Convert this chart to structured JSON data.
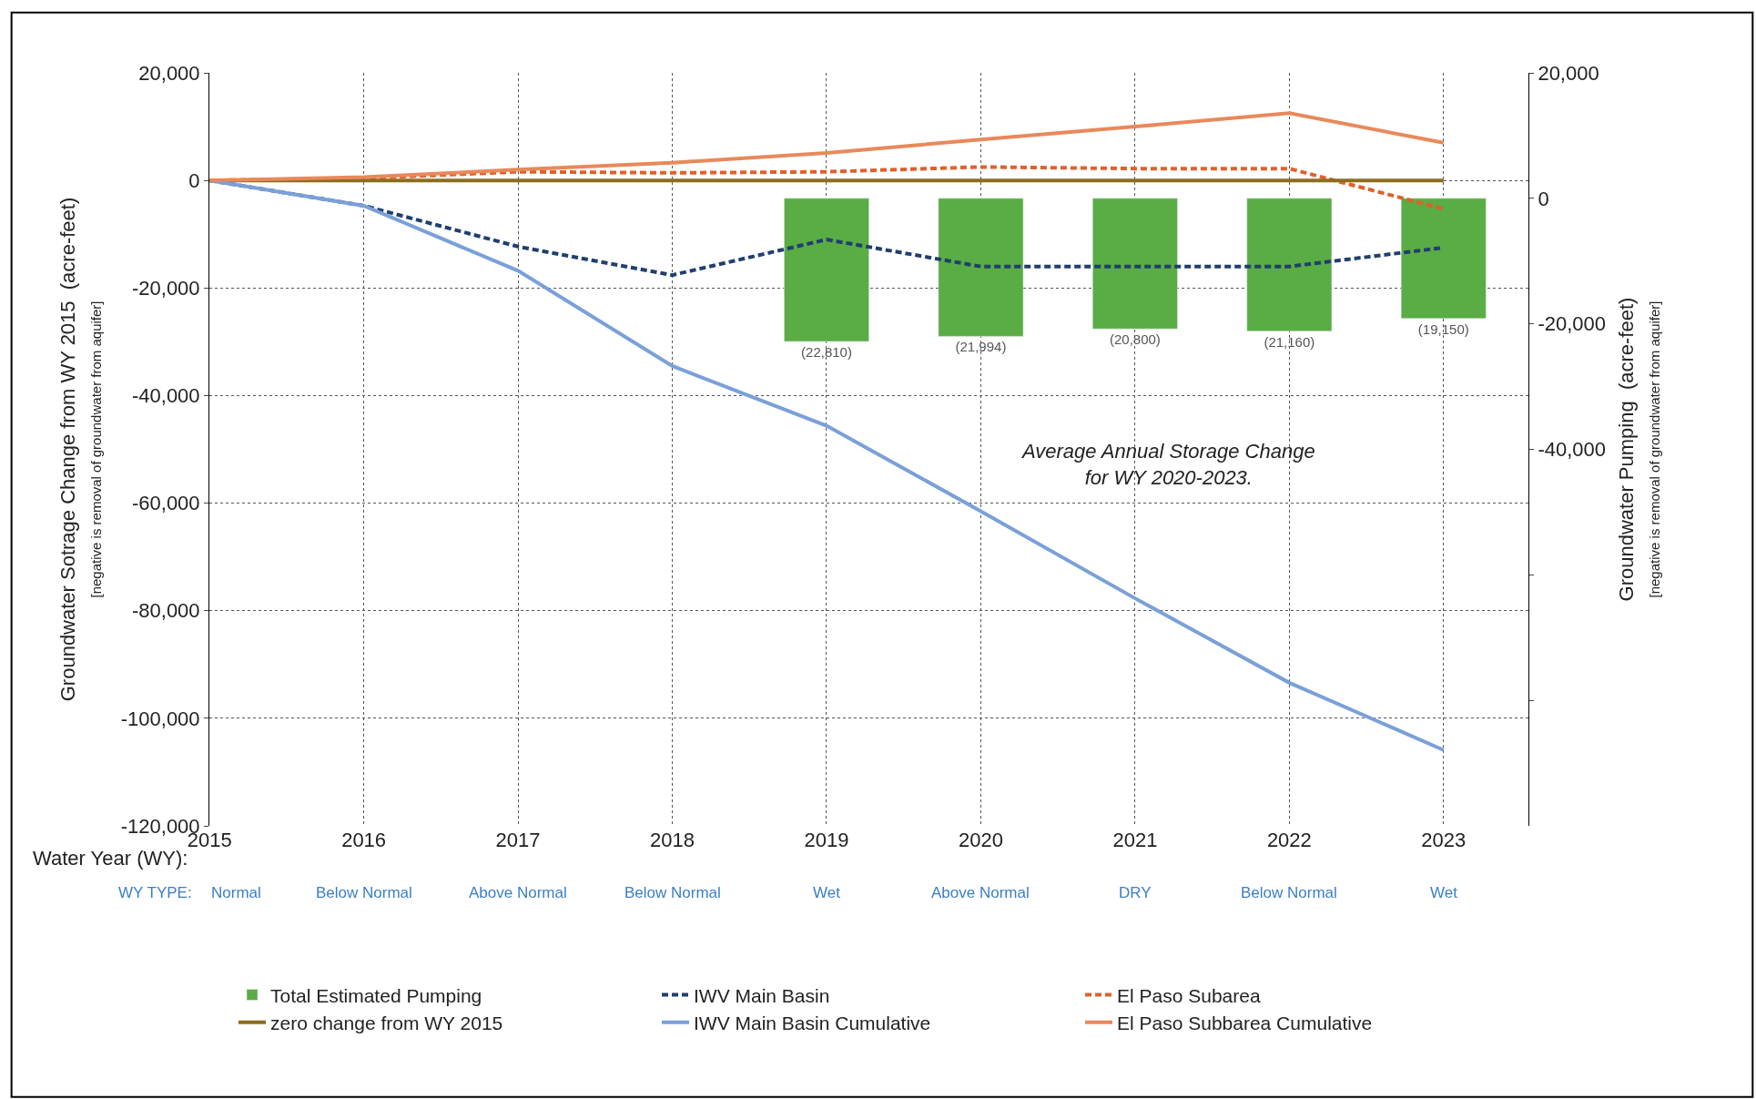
{
  "chart_data": {
    "type": "line",
    "categories": [
      "2015",
      "2016",
      "2017",
      "2018",
      "2019",
      "2020",
      "2021",
      "2022",
      "2023"
    ],
    "xlabel": "Water Year (WY):",
    "ylabel": "Groundwater Sotrage Change from WY 2015  (acre-feet)\n[negative is removal of groundwater from aquifer]",
    "y2label": "Groundwater Pumping  (acre-feet)\n[negative is removal of groundwater from aquifer]",
    "ylim": [
      -120000,
      20000
    ],
    "yticks": [
      {
        "value": 20000,
        "label": "20,000"
      },
      0,
      {
        "value": -20000,
        "label": "-20,000"
      },
      {
        "value": -40000,
        "label": "-40,000"
      },
      {
        "value": -60000,
        "label": "-60,000"
      },
      {
        "value": -80000,
        "label": "-80,000"
      },
      {
        "value": -100000,
        "label": "-100,000"
      },
      {
        "value": -120000,
        "label": "-120,000"
      }
    ],
    "y2lim": [
      -100000,
      20000
    ],
    "y2ticks": [
      {
        "value": 20000,
        "label": "20,000"
      },
      0,
      {
        "value": -20000,
        "label": "-20,000"
      },
      {
        "value": -40000,
        "label": "-40,000"
      },
      {
        "value": -60000,
        "label": null
      },
      {
        "value": -80000,
        "label": null
      }
    ],
    "grid": true,
    "legend": "bottom",
    "annotations": [
      "Average Annual Storage Change\nfor WY 2020-2023.",
      "WY TYPE:",
      "Normal",
      "Below Normal",
      "Above Normal",
      "Below Normal",
      "Wet",
      "Above Normal",
      "DRY",
      "Below Normal",
      "Wet"
    ],
    "series": [
      {
        "name": "Total Estimated Pumping",
        "type": "bar",
        "axis": "y2",
        "color": "#5aac44",
        "values": [
          null,
          null,
          null,
          null,
          -22810,
          -21994,
          -20800,
          -21160,
          -19150
        ],
        "value_labels": [
          null,
          null,
          null,
          null,
          "(22,810)",
          "(21,994)",
          "(20,800)",
          "(21,160)",
          "(19,150)"
        ]
      },
      {
        "name": "IWV Main Basin",
        "color": "#1f3f6e",
        "line_style": "dashed",
        "values": [
          0,
          -4700,
          -12300,
          -17600,
          -11000,
          -16000,
          -16000,
          -16000,
          -12500
        ]
      },
      {
        "name": "El Paso Subarea",
        "color": "#e0602a",
        "line_style": "dashed",
        "values": [
          0,
          400,
          1600,
          1400,
          1600,
          2500,
          2200,
          2200,
          -5300
        ]
      },
      {
        "name": "zero change from WY 2015",
        "color": "#8c6d1f",
        "line_style": "solid",
        "values": [
          0,
          0,
          0,
          0,
          0,
          0,
          0,
          0,
          0
        ]
      },
      {
        "name": "IWV Main Basin Cumulative",
        "color": "#7aa0d8",
        "line_style": "solid",
        "values": [
          0,
          -4700,
          -16800,
          -34500,
          -45600,
          -61500,
          -77700,
          -93400,
          -105900
        ]
      },
      {
        "name": "El Paso Subbarea Cumulative",
        "color": "#e8895a",
        "line_style": "solid",
        "values": [
          0,
          600,
          2000,
          3300,
          5100,
          7600,
          10000,
          12500,
          7000
        ]
      }
    ]
  }
}
